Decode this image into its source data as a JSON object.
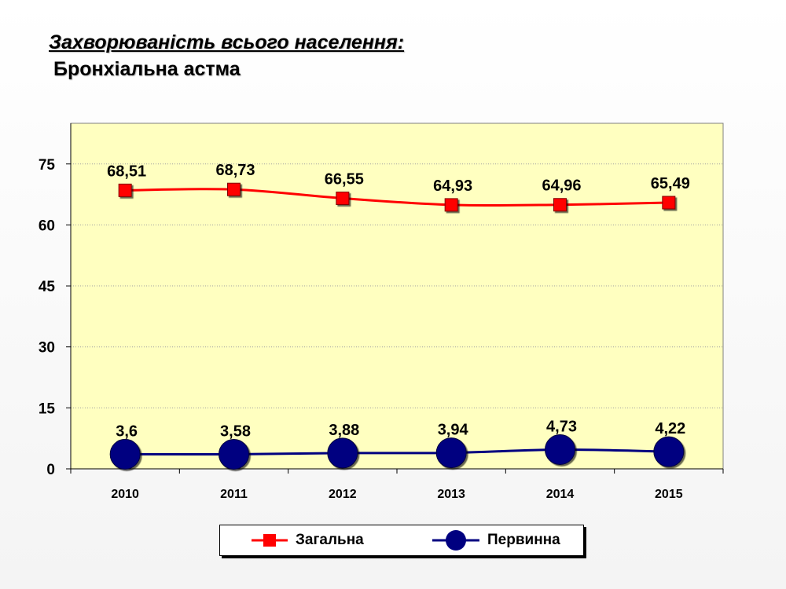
{
  "header": {
    "title": "Захворюваність всього населення:",
    "subtitle": "Бронхіальна астма"
  },
  "chart_data": {
    "type": "line",
    "categories": [
      "2010",
      "2011",
      "2012",
      "2013",
      "2014",
      "2015"
    ],
    "series": [
      {
        "name": "Загальна",
        "values": [
          68.51,
          68.73,
          66.55,
          64.93,
          64.96,
          65.49
        ],
        "labels": [
          "68,51",
          "68,73",
          "66,55",
          "64,93",
          "64,96",
          "65,49"
        ],
        "color": "#ff0000",
        "marker": "square"
      },
      {
        "name": "Первинна",
        "values": [
          3.6,
          3.58,
          3.88,
          3.94,
          4.73,
          4.22
        ],
        "labels": [
          "3,6",
          "3,58",
          "3,88",
          "3,94",
          "4,73",
          "4,22"
        ],
        "color": "#000080",
        "marker": "circle"
      }
    ],
    "yticks": [
      0,
      15,
      30,
      45,
      60,
      75
    ],
    "ylim": [
      0,
      85
    ],
    "grid": true,
    "plot_background": "#ffffc0",
    "legend_position": "bottom"
  }
}
